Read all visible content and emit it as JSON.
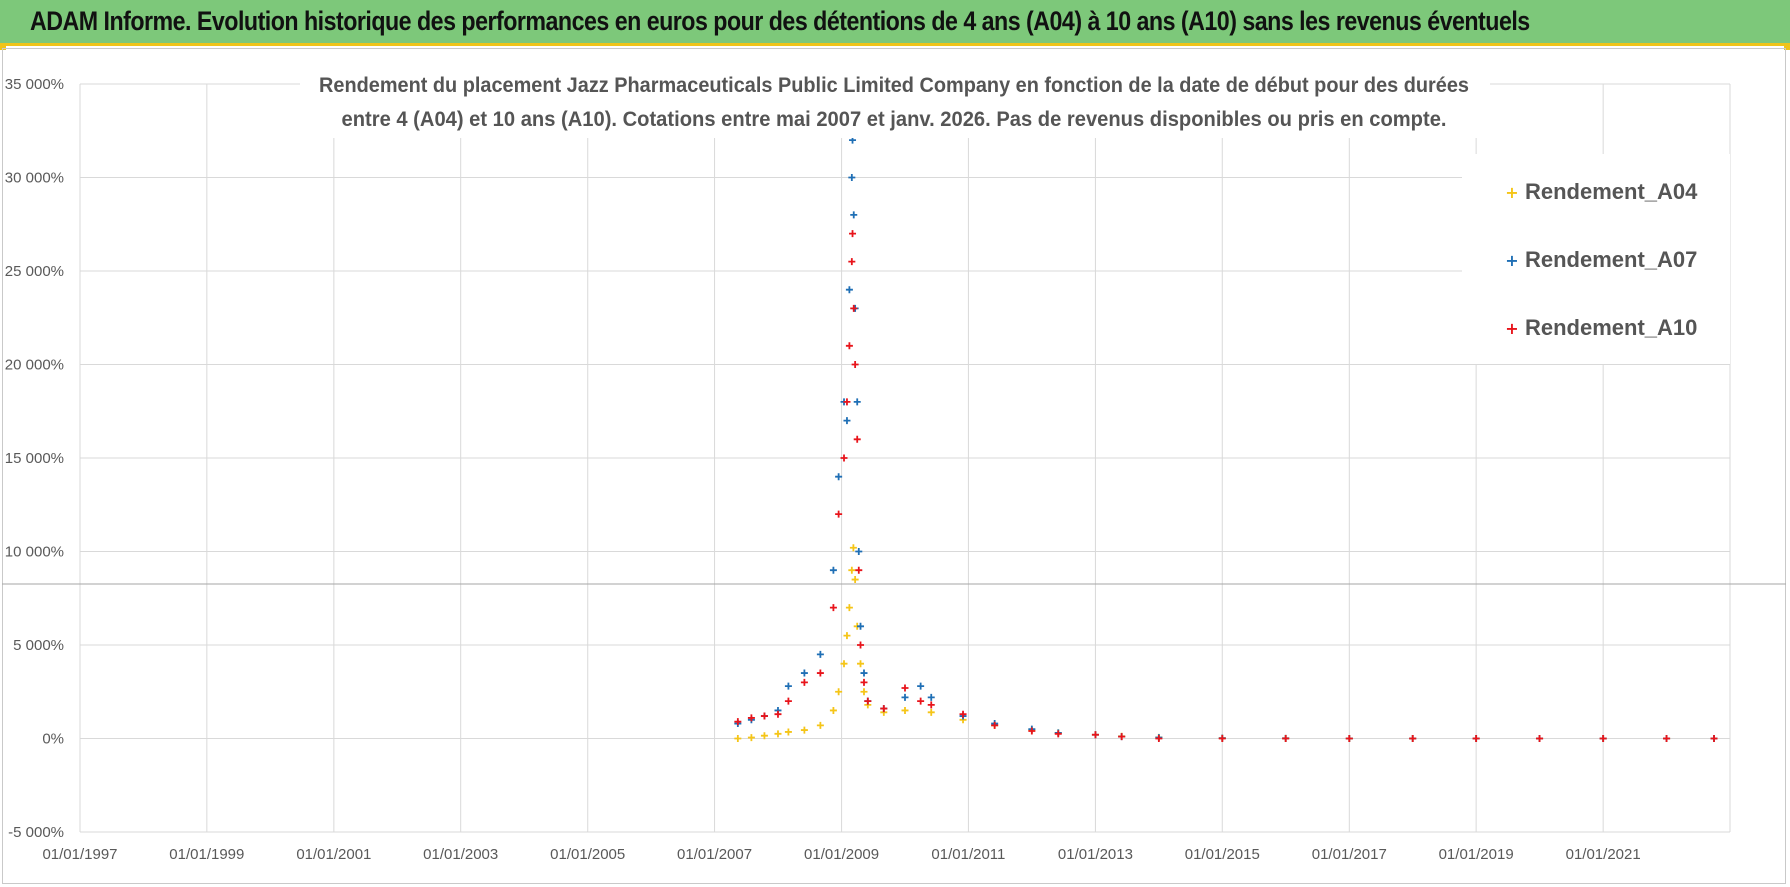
{
  "header": {
    "title": "ADAM Informe. Evolution historique des performances en euros pour des détentions de 4 ans (A04) à 10 ans (A10) sans les revenus éventuels"
  },
  "colors": {
    "header_bg": "#7dc87a",
    "accent": "#f0c419",
    "Rendement_A04": "#f5c518",
    "Rendement_A07": "#1f6fb5",
    "Rendement_A10": "#e8141b"
  },
  "chart_data": {
    "type": "scatter",
    "title_lines": [
      "Rendement du placement Jazz Pharmaceuticals Public Limited Company en fonction de la date de début pour des durées",
      "entre 4 (A04) et 10 ans (A10). Cotations entre mai 2007 et janv. 2026. Pas de revenus disponibles ou pris en compte."
    ],
    "xlabel": "",
    "ylabel": "",
    "x_ticks": [
      "01/01/1997",
      "01/01/1999",
      "01/01/2001",
      "01/01/2003",
      "01/01/2005",
      "01/01/2007",
      "01/01/2009",
      "01/01/2011",
      "01/01/2013",
      "01/01/2015",
      "01/01/2017",
      "01/01/2019",
      "01/01/2021"
    ],
    "xlim": [
      "1997-01-01",
      "2023-01-01"
    ],
    "y_ticks": [
      "-5 000%",
      "0%",
      "5 000%",
      "10 000%",
      "15 000%",
      "20 000%",
      "25 000%",
      "30 000%",
      "35 000%"
    ],
    "ylim": [
      -5000,
      35000
    ],
    "grid": true,
    "legend_position": "right",
    "series": [
      {
        "name": "Rendement_A04",
        "marker": "+",
        "points": [
          [
            "2007-05-15",
            0
          ],
          [
            "2007-08-01",
            50
          ],
          [
            "2007-10-15",
            150
          ],
          [
            "2008-01-01",
            250
          ],
          [
            "2008-03-01",
            350
          ],
          [
            "2008-06-01",
            450
          ],
          [
            "2008-09-01",
            700
          ],
          [
            "2008-11-15",
            1500
          ],
          [
            "2008-12-15",
            2500
          ],
          [
            "2009-01-15",
            4000
          ],
          [
            "2009-02-01",
            5500
          ],
          [
            "2009-02-15",
            7000
          ],
          [
            "2009-03-01",
            9000
          ],
          [
            "2009-03-10",
            10200
          ],
          [
            "2009-03-20",
            8500
          ],
          [
            "2009-04-01",
            6000
          ],
          [
            "2009-04-20",
            4000
          ],
          [
            "2009-05-10",
            2500
          ],
          [
            "2009-06-01",
            1800
          ],
          [
            "2009-09-01",
            1400
          ],
          [
            "2010-01-01",
            1500
          ],
          [
            "2010-06-01",
            1400
          ],
          [
            "2010-12-01",
            1000
          ],
          [
            "2011-06-01",
            700
          ],
          [
            "2012-01-01",
            450
          ],
          [
            "2012-06-01",
            300
          ],
          [
            "2013-01-01",
            200
          ],
          [
            "2013-06-01",
            120
          ],
          [
            "2014-01-01",
            60
          ],
          [
            "2015-01-01",
            20
          ],
          [
            "2016-01-01",
            10
          ],
          [
            "2017-01-01",
            0
          ],
          [
            "2018-01-01",
            0
          ],
          [
            "2019-01-01",
            0
          ],
          [
            "2020-01-01",
            0
          ],
          [
            "2021-01-01",
            0
          ],
          [
            "2022-01-01",
            0
          ],
          [
            "2022-10-01",
            0
          ]
        ]
      },
      {
        "name": "Rendement_A07",
        "marker": "+",
        "points": [
          [
            "2007-05-15",
            800
          ],
          [
            "2007-08-01",
            1000
          ],
          [
            "2007-10-15",
            1200
          ],
          [
            "2008-01-01",
            1500
          ],
          [
            "2008-03-01",
            2800
          ],
          [
            "2008-06-01",
            3500
          ],
          [
            "2008-09-01",
            4500
          ],
          [
            "2008-11-15",
            9000
          ],
          [
            "2008-12-15",
            14000
          ],
          [
            "2009-01-15",
            18000
          ],
          [
            "2009-02-01",
            17000
          ],
          [
            "2009-02-15",
            24000
          ],
          [
            "2009-03-01",
            30000
          ],
          [
            "2009-03-05",
            32000
          ],
          [
            "2009-03-12",
            28000
          ],
          [
            "2009-03-20",
            23000
          ],
          [
            "2009-04-01",
            18000
          ],
          [
            "2009-04-10",
            10000
          ],
          [
            "2009-04-20",
            6000
          ],
          [
            "2009-05-10",
            3500
          ],
          [
            "2009-06-01",
            2000
          ],
          [
            "2009-09-01",
            1600
          ],
          [
            "2010-01-01",
            2200
          ],
          [
            "2010-04-01",
            2800
          ],
          [
            "2010-06-01",
            2200
          ],
          [
            "2010-12-01",
            1200
          ],
          [
            "2011-06-01",
            800
          ],
          [
            "2012-01-01",
            500
          ],
          [
            "2012-06-01",
            300
          ],
          [
            "2013-01-01",
            200
          ],
          [
            "2013-06-01",
            100
          ],
          [
            "2014-01-01",
            50
          ],
          [
            "2015-01-01",
            20
          ],
          [
            "2016-01-01",
            10
          ],
          [
            "2017-01-01",
            0
          ],
          [
            "2018-01-01",
            0
          ],
          [
            "2019-01-01",
            0
          ],
          [
            "2020-01-01",
            0
          ],
          [
            "2021-01-01",
            0
          ],
          [
            "2022-01-01",
            0
          ],
          [
            "2022-10-01",
            0
          ]
        ]
      },
      {
        "name": "Rendement_A10",
        "marker": "+",
        "points": [
          [
            "2007-05-15",
            900
          ],
          [
            "2007-08-01",
            1100
          ],
          [
            "2007-10-15",
            1200
          ],
          [
            "2008-01-01",
            1300
          ],
          [
            "2008-03-01",
            2000
          ],
          [
            "2008-06-01",
            3000
          ],
          [
            "2008-09-01",
            3500
          ],
          [
            "2008-11-15",
            7000
          ],
          [
            "2008-12-15",
            12000
          ],
          [
            "2009-01-15",
            15000
          ],
          [
            "2009-02-01",
            18000
          ],
          [
            "2009-02-15",
            21000
          ],
          [
            "2009-03-01",
            25500
          ],
          [
            "2009-03-05",
            27000
          ],
          [
            "2009-03-12",
            23000
          ],
          [
            "2009-03-20",
            20000
          ],
          [
            "2009-04-01",
            16000
          ],
          [
            "2009-04-10",
            9000
          ],
          [
            "2009-04-20",
            5000
          ],
          [
            "2009-05-10",
            3000
          ],
          [
            "2009-06-01",
            2000
          ],
          [
            "2009-09-01",
            1600
          ],
          [
            "2010-01-01",
            2700
          ],
          [
            "2010-04-01",
            2000
          ],
          [
            "2010-06-01",
            1800
          ],
          [
            "2010-12-01",
            1300
          ],
          [
            "2011-06-01",
            700
          ],
          [
            "2012-01-01",
            400
          ],
          [
            "2012-06-01",
            250
          ],
          [
            "2013-01-01",
            200
          ],
          [
            "2013-06-01",
            100
          ],
          [
            "2014-01-01",
            0
          ],
          [
            "2015-01-01",
            0
          ],
          [
            "2016-01-01",
            0
          ],
          [
            "2017-01-01",
            0
          ],
          [
            "2018-01-01",
            0
          ],
          [
            "2019-01-01",
            0
          ],
          [
            "2020-01-01",
            0
          ],
          [
            "2021-01-01",
            0
          ],
          [
            "2022-01-01",
            0
          ],
          [
            "2022-10-01",
            0
          ]
        ]
      }
    ]
  }
}
